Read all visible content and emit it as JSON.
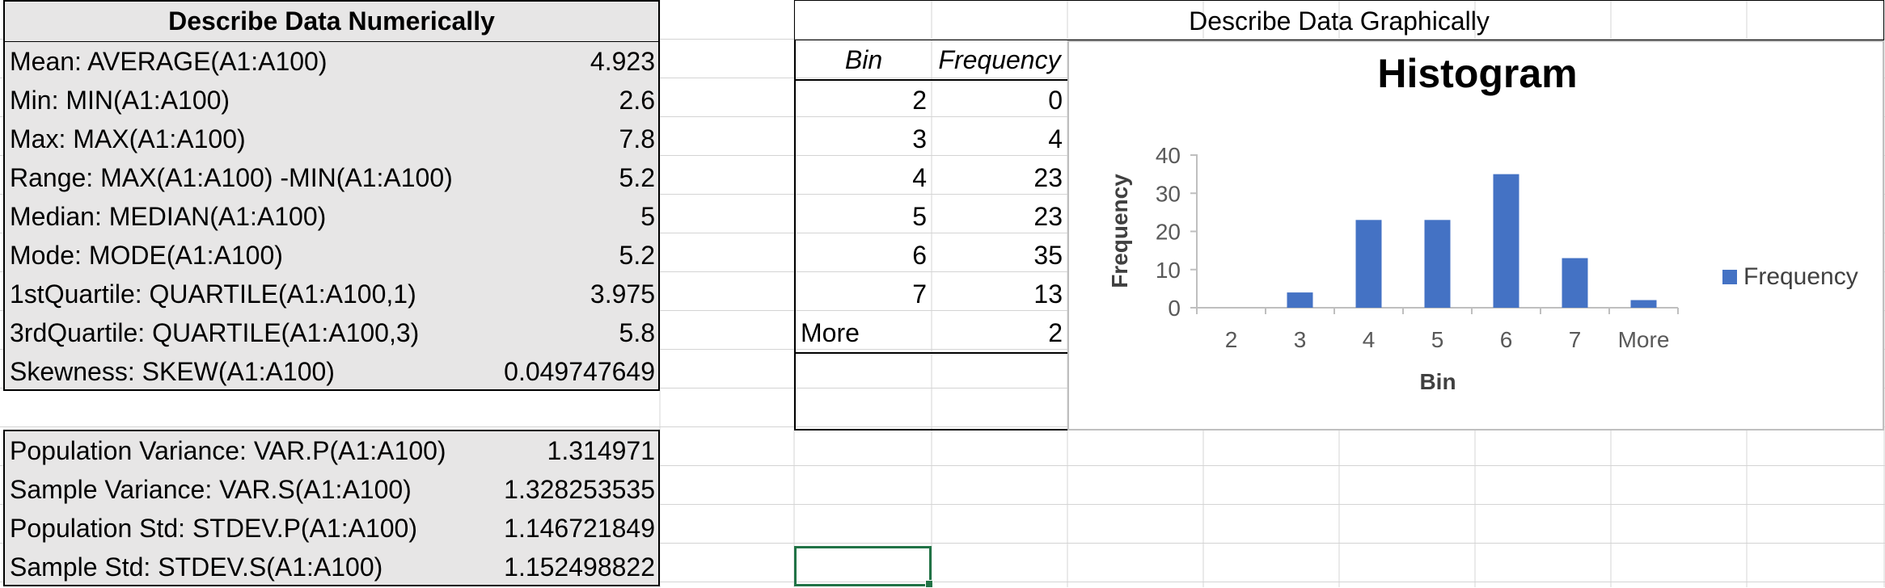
{
  "numeric": {
    "title": "Describe Data Numerically",
    "rows": [
      {
        "label": "Mean: AVERAGE(A1:A100)",
        "value": "4.923"
      },
      {
        "label": "Min: MIN(A1:A100)",
        "value": "2.6"
      },
      {
        "label": "Max: MAX(A1:A100)",
        "value": "7.8"
      },
      {
        "label": "Range: MAX(A1:A100) -MIN(A1:A100)",
        "value": "5.2"
      },
      {
        "label": "Median: MEDIAN(A1:A100)",
        "value": "5"
      },
      {
        "label": "Mode: MODE(A1:A100)",
        "value": "5.2"
      },
      {
        "label": "1stQuartile: QUARTILE(A1:A100,1)",
        "value": "3.975"
      },
      {
        "label": "3rdQuartile: QUARTILE(A1:A100,3)",
        "value": "5.8"
      },
      {
        "label": "Skewness: SKEW(A1:A100)",
        "value": "0.049747649"
      }
    ],
    "variance_rows": [
      {
        "label": "Population Variance: VAR.P(A1:A100)",
        "value": "1.314971"
      },
      {
        "label": "Sample Variance: VAR.S(A1:A100)",
        "value": "1.328253535"
      },
      {
        "label": "Population Std: STDEV.P(A1:A100)",
        "value": "1.146721849"
      },
      {
        "label": "Sample Std: STDEV.S(A1:A100)",
        "value": "1.152498822"
      }
    ]
  },
  "graphic": {
    "title": "Describe Data Graphically",
    "table": {
      "headers": [
        "Bin",
        "Frequency"
      ],
      "rows": [
        {
          "bin": "2",
          "freq": "0"
        },
        {
          "bin": "3",
          "freq": "4"
        },
        {
          "bin": "4",
          "freq": "23"
        },
        {
          "bin": "5",
          "freq": "23"
        },
        {
          "bin": "6",
          "freq": "35"
        },
        {
          "bin": "7",
          "freq": "13"
        },
        {
          "bin": "More",
          "freq": "2"
        }
      ]
    }
  },
  "colors": {
    "bar": "#4472c4",
    "panel_gray": "#e7e6e6",
    "grid": "#d4d4d4",
    "selection": "#217346"
  },
  "chart_data": {
    "type": "bar",
    "title": "Histogram",
    "xlabel": "Bin",
    "ylabel": "Frequency",
    "categories": [
      "2",
      "3",
      "4",
      "5",
      "6",
      "7",
      "More"
    ],
    "series": [
      {
        "name": "Frequency",
        "values": [
          0,
          4,
          23,
          23,
          35,
          13,
          2
        ]
      }
    ],
    "ylim": [
      0,
      40
    ],
    "yticks": [
      0,
      10,
      20,
      30,
      40
    ],
    "grid": false,
    "legend": "right"
  }
}
